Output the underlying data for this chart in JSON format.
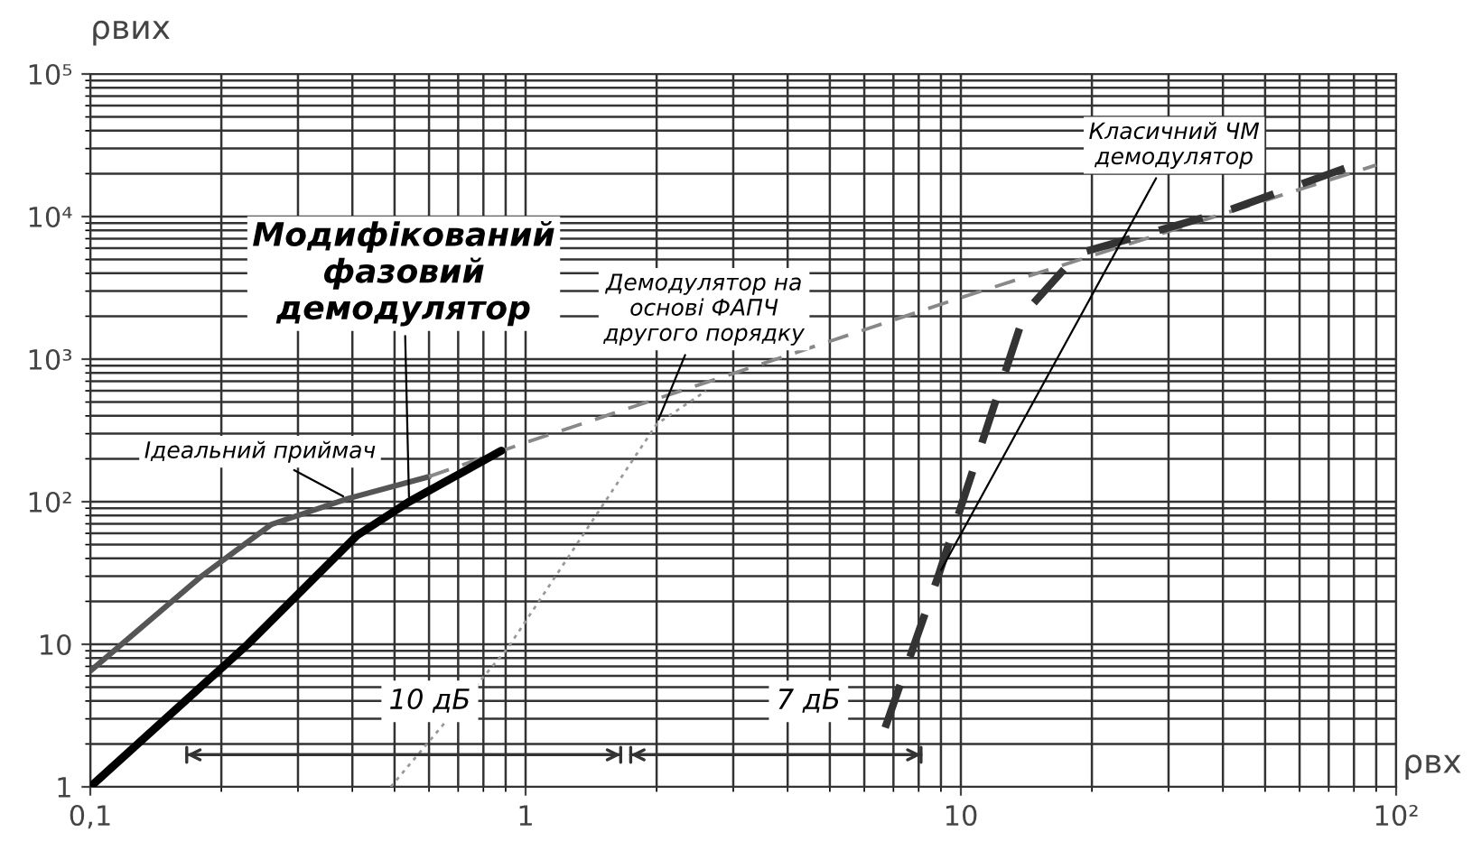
{
  "chart_data": {
    "type": "line",
    "xlabel": "ρвх",
    "ylabel": "ρвих",
    "log": "xy",
    "grid": true,
    "legend": false,
    "marker": "none",
    "xlim": [
      0.1,
      100
    ],
    "ylim": [
      1,
      100000
    ],
    "xticks": [
      {
        "value": 0.1,
        "label": "0,1"
      },
      1,
      10,
      {
        "value": 100,
        "label": "10²"
      }
    ],
    "yticks": [
      1,
      10,
      {
        "value": 100,
        "label": "10²"
      },
      {
        "value": 1000,
        "label": "10³"
      },
      {
        "value": 10000,
        "label": "10⁴"
      },
      {
        "value": 100000,
        "label": "10⁵"
      }
    ],
    "series": [
      {
        "color": "#555555",
        "line_style": "solid",
        "x": [
          0.1,
          0.18,
          0.26,
          0.39,
          0.6
        ],
        "values": [
          6.5,
          30,
          69,
          105,
          150
        ]
      },
      {
        "color": "#888888",
        "line_style": "dashed",
        "x": [
          0.6,
          1,
          10,
          90
        ],
        "values": [
          150,
          260,
          2700,
          23000
        ]
      },
      {
        "color": "#000000",
        "line_style": "solid",
        "x": [
          0.1,
          0.23,
          0.41,
          0.54,
          0.88
        ],
        "values": [
          1,
          10,
          58,
          100,
          228
        ]
      },
      {
        "color": "#999999",
        "line_style": "dotted",
        "x": [
          0.49,
          0.91,
          2.0,
          2.6
        ],
        "values": [
          1,
          9.4,
          350,
          600
        ]
      },
      {
        "color": "#333333",
        "line_style": "dashed",
        "x": [
          6.7,
          8.9,
          14,
          18.6,
          41,
          80
        ],
        "values": [
          2.6,
          31,
          2100,
          5500,
          11000,
          23000
        ]
      }
    ],
    "annotations": [
      {
        "text": "Модифікований\nфазовий\nдемодулятор",
        "x": 0.54,
        "y": 100
      },
      {
        "text": "Ідеальний приймач",
        "x": 0.39,
        "y": 105
      },
      {
        "text": "Демодулятор на\nоснові ФАПЧ\nдругого порядку",
        "x": 2.0,
        "y": 350
      },
      {
        "text": "Класичний ЧМ\nдемодулятор",
        "x": 8.9,
        "y": 31
      },
      "10 дБ",
      "7 дБ"
    ]
  }
}
